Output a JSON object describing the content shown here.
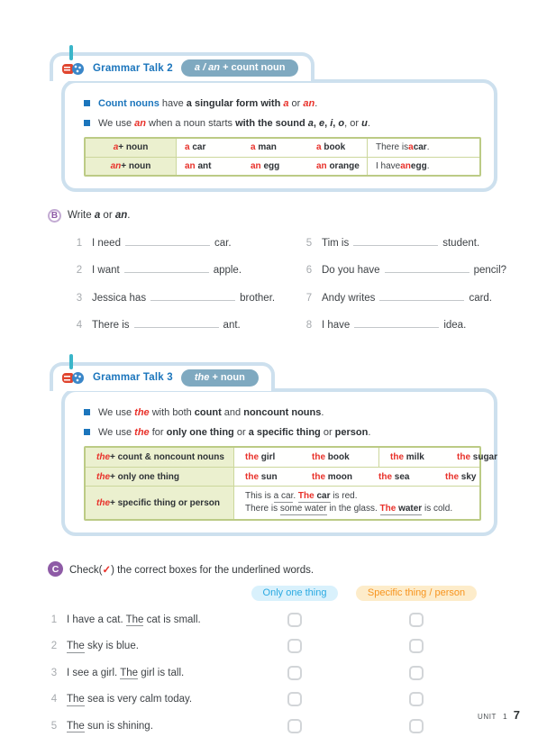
{
  "colors": {
    "accent-red": "#e8312a",
    "accent-blue": "#1b75bc",
    "box-border": "#cde0ee",
    "badge-bg": "#7fa9c0",
    "table-border": "#bccb85",
    "table-grid": "#ccd79c",
    "table-header-bg": "#ebf0cf",
    "pill-one-bg": "#d9f1fc",
    "pill-one-text": "#29a9e1",
    "pill-spec-bg": "#fdecca",
    "pill-spec-text": "#f7941e",
    "exercise-purple": "#8e5ba6",
    "teal": "#3ab5c9"
  },
  "talk2": {
    "title": "Grammar Talk 2",
    "badge": [
      {
        "t": "a / an",
        "c": "i"
      },
      {
        "t": " + count noun"
      }
    ],
    "bullets": [
      [
        {
          "t": "Count nouns",
          "c": "blue b"
        },
        {
          "t": " have "
        },
        {
          "t": "a singular form with",
          "c": "b"
        },
        {
          "t": " "
        },
        {
          "t": "a",
          "c": "red b i"
        },
        {
          "t": " or "
        },
        {
          "t": "an",
          "c": "red b i"
        },
        {
          "t": "."
        }
      ],
      [
        {
          "t": "We use "
        },
        {
          "t": "an",
          "c": "red b i"
        },
        {
          "t": " when a noun starts "
        },
        {
          "t": "with the sound ",
          "c": "b"
        },
        {
          "t": "a",
          "c": "b i"
        },
        {
          "t": ", ",
          "c": "b"
        },
        {
          "t": "e",
          "c": "b i"
        },
        {
          "t": ", ",
          "c": "b"
        },
        {
          "t": "i",
          "c": "b i"
        },
        {
          "t": ", ",
          "c": "b"
        },
        {
          "t": "o",
          "c": "b i"
        },
        {
          "t": ", or "
        },
        {
          "t": "u",
          "c": "b i"
        },
        {
          "t": "."
        }
      ]
    ],
    "table": {
      "rows": [
        {
          "header": [
            {
              "t": "a",
              "c": "red b i"
            },
            {
              "t": " + noun",
              "c": "b"
            }
          ],
          "nouns": [
            [
              {
                "t": "a ",
                "c": "red b"
              },
              {
                "t": "car",
                "c": "b"
              }
            ],
            [
              {
                "t": "a ",
                "c": "red b"
              },
              {
                "t": "man",
                "c": "b"
              }
            ],
            [
              {
                "t": "a ",
                "c": "red b"
              },
              {
                "t": "book",
                "c": "b"
              }
            ]
          ],
          "example": [
            {
              "t": "There is "
            },
            {
              "t": "a ",
              "c": "red b"
            },
            {
              "t": "car",
              "c": "b"
            },
            {
              "t": "."
            }
          ]
        },
        {
          "header": [
            {
              "t": "an",
              "c": "red b i"
            },
            {
              "t": " + noun",
              "c": "b"
            }
          ],
          "nouns": [
            [
              {
                "t": "an ",
                "c": "red b"
              },
              {
                "t": "ant",
                "c": "b"
              }
            ],
            [
              {
                "t": "an ",
                "c": "red b"
              },
              {
                "t": "egg",
                "c": "b"
              }
            ],
            [
              {
                "t": "an ",
                "c": "red b"
              },
              {
                "t": "orange",
                "c": "b"
              }
            ]
          ],
          "example": [
            {
              "t": "I have "
            },
            {
              "t": "an ",
              "c": "red b"
            },
            {
              "t": "egg",
              "c": "b"
            },
            {
              "t": "."
            }
          ]
        }
      ]
    }
  },
  "exB": {
    "icon": "B",
    "label": [
      {
        "t": "Write "
      },
      {
        "t": "a",
        "c": "b i"
      },
      {
        "t": " or "
      },
      {
        "t": "an",
        "c": "b i"
      },
      {
        "t": "."
      }
    ],
    "items": [
      {
        "num": "1",
        "pre": "I need",
        "post": "car."
      },
      {
        "num": "2",
        "pre": "I want",
        "post": "apple."
      },
      {
        "num": "3",
        "pre": "Jessica has",
        "post": "brother."
      },
      {
        "num": "4",
        "pre": "There is",
        "post": "ant."
      },
      {
        "num": "5",
        "pre": "Tim is",
        "post": "student."
      },
      {
        "num": "6",
        "pre": "Do you have",
        "post": "pencil?"
      },
      {
        "num": "7",
        "pre": "Andy writes",
        "post": "card."
      },
      {
        "num": "8",
        "pre": "I have",
        "post": "idea."
      }
    ]
  },
  "talk3": {
    "title": "Grammar Talk 3",
    "badge": [
      {
        "t": "the",
        "c": "i"
      },
      {
        "t": " + noun"
      }
    ],
    "bullets": [
      [
        {
          "t": "We use "
        },
        {
          "t": "the",
          "c": "red b i"
        },
        {
          "t": " with both "
        },
        {
          "t": "count",
          "c": "b"
        },
        {
          "t": " and "
        },
        {
          "t": "noncount nouns",
          "c": "b"
        },
        {
          "t": "."
        }
      ],
      [
        {
          "t": "We use "
        },
        {
          "t": "the",
          "c": "red b i"
        },
        {
          "t": " for "
        },
        {
          "t": "only one thing",
          "c": "b"
        },
        {
          "t": " or "
        },
        {
          "t": "a specific thing",
          "c": "b"
        },
        {
          "t": " or "
        },
        {
          "t": "person",
          "c": "b"
        },
        {
          "t": "."
        }
      ]
    ],
    "table": {
      "row1": {
        "header": [
          {
            "t": "the",
            "c": "red b i"
          },
          {
            "t": " + count & noncount nouns",
            "c": "b"
          }
        ],
        "cellA": [
          [
            {
              "t": "the ",
              "c": "red b"
            },
            {
              "t": "girl",
              "c": "b"
            }
          ],
          [
            {
              "t": "the ",
              "c": "red b"
            },
            {
              "t": "book",
              "c": "b"
            }
          ]
        ],
        "cellB": [
          [
            {
              "t": "the ",
              "c": "red b"
            },
            {
              "t": "milk",
              "c": "b"
            }
          ],
          [
            {
              "t": "the ",
              "c": "red b"
            },
            {
              "t": "sugar",
              "c": "b"
            }
          ]
        ]
      },
      "row2": {
        "header": [
          {
            "t": "the",
            "c": "red b i"
          },
          {
            "t": " + only one thing",
            "c": "b"
          }
        ],
        "cell": [
          [
            {
              "t": "the ",
              "c": "red b"
            },
            {
              "t": "sun",
              "c": "b"
            }
          ],
          [
            {
              "t": "the ",
              "c": "red b"
            },
            {
              "t": "moon",
              "c": "b"
            }
          ],
          [
            {
              "t": "the ",
              "c": "red b"
            },
            {
              "t": "sea",
              "c": "b"
            }
          ],
          [
            {
              "t": "the ",
              "c": "red b"
            },
            {
              "t": "sky",
              "c": "b"
            }
          ]
        ]
      },
      "row3": {
        "header": [
          {
            "t": "the",
            "c": "red b i"
          },
          {
            "t": " + specific thing or person",
            "c": "b"
          }
        ],
        "lines": [
          [
            {
              "t": "This is "
            },
            {
              "t": "a car",
              "c": "u"
            },
            {
              "t": ". "
            },
            {
              "t": "The ",
              "c": "red b u"
            },
            {
              "t": "car",
              "c": "b u"
            },
            {
              "t": " is red."
            }
          ],
          [
            {
              "t": "There is "
            },
            {
              "t": "some water",
              "c": "u"
            },
            {
              "t": " in the glass. "
            },
            {
              "t": "The ",
              "c": "red b u"
            },
            {
              "t": "water",
              "c": "b u"
            },
            {
              "t": " is cold."
            }
          ]
        ]
      }
    }
  },
  "exC": {
    "icon": "C",
    "label": [
      {
        "t": "Check("
      },
      {
        "t": "✓",
        "c": "red b"
      },
      {
        "t": ") the correct boxes for the underlined words."
      }
    ],
    "col1": "Only one thing",
    "col2": "Specific thing / person",
    "items": [
      {
        "num": "1",
        "sentence": [
          {
            "t": "I have a cat. "
          },
          {
            "t": "The",
            "c": "u"
          },
          {
            "t": " cat is small."
          }
        ]
      },
      {
        "num": "2",
        "sentence": [
          {
            "t": "The",
            "c": "u"
          },
          {
            "t": " sky is blue."
          }
        ]
      },
      {
        "num": "3",
        "sentence": [
          {
            "t": "I see a girl. "
          },
          {
            "t": "The",
            "c": "u"
          },
          {
            "t": " girl is tall."
          }
        ]
      },
      {
        "num": "4",
        "sentence": [
          {
            "t": "The",
            "c": "u"
          },
          {
            "t": " sea is very calm today."
          }
        ]
      },
      {
        "num": "5",
        "sentence": [
          {
            "t": "The",
            "c": "u"
          },
          {
            "t": " sun is shining."
          }
        ]
      }
    ]
  },
  "footer": {
    "unit_label": "UNIT",
    "unit_number": "1",
    "page_number": "7"
  }
}
